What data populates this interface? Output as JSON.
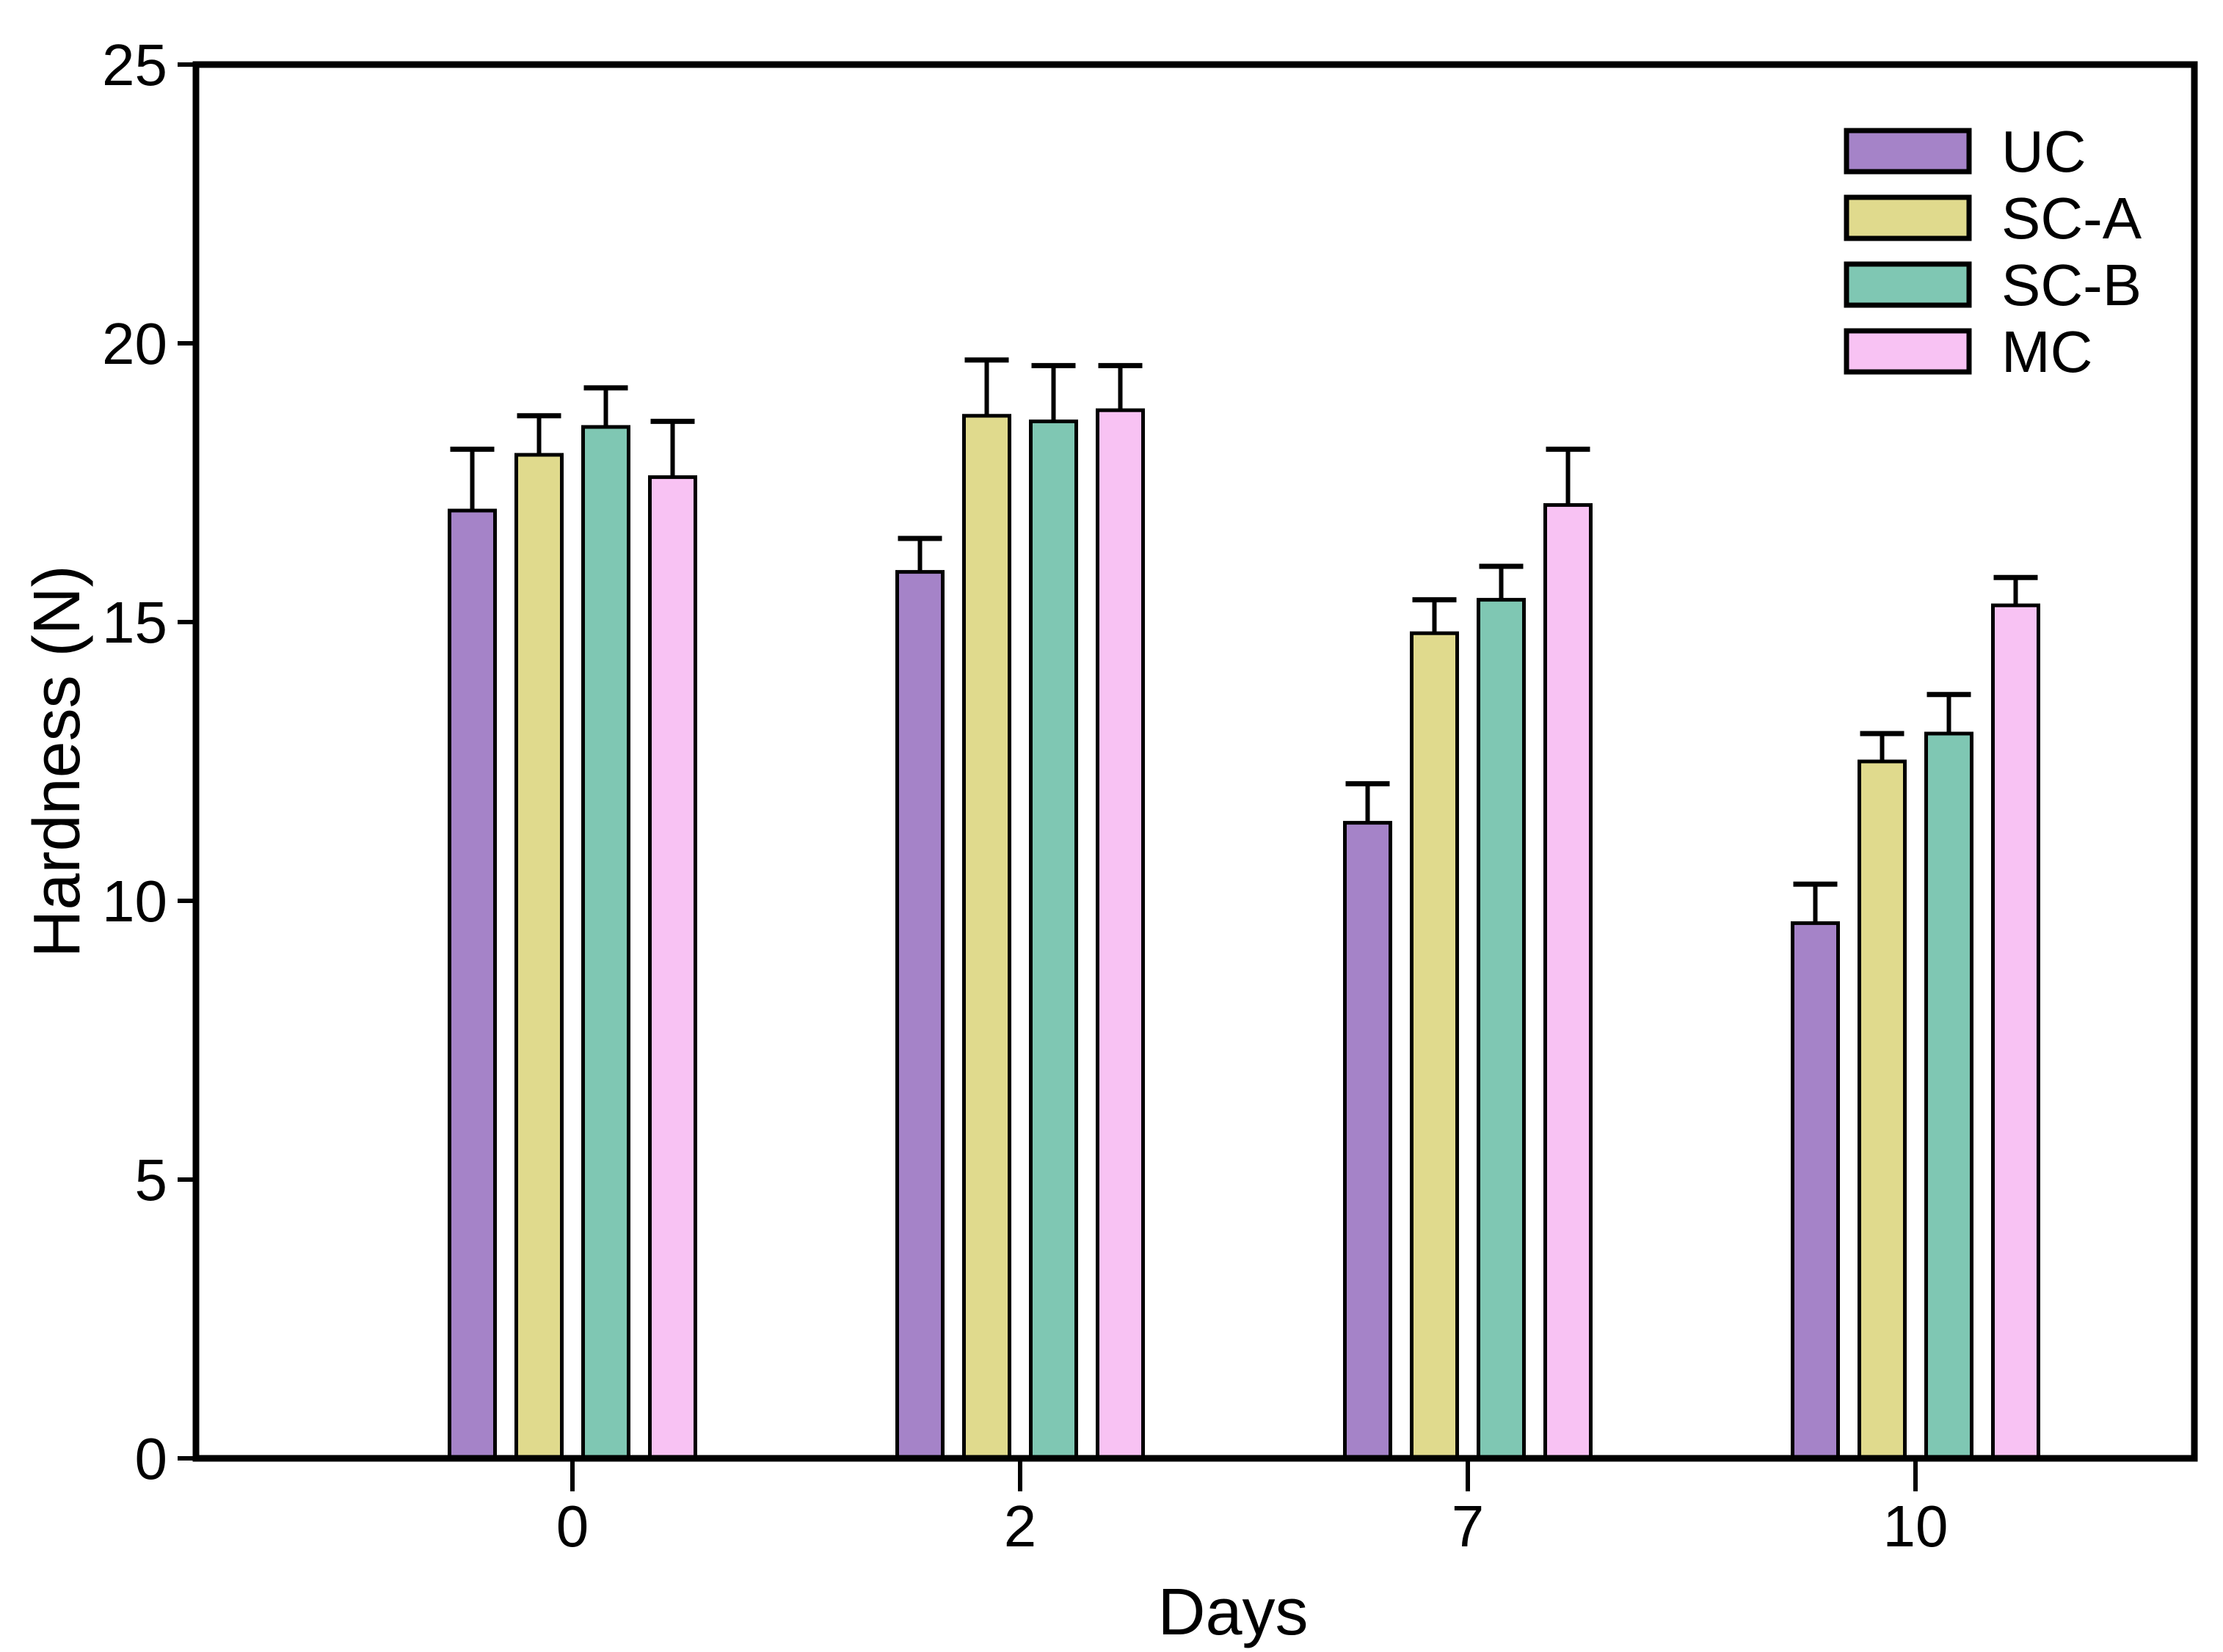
{
  "chart_data": {
    "type": "bar",
    "title": "",
    "xlabel": "Days",
    "ylabel": "Hardness (N)",
    "categories": [
      "0",
      "2",
      "7",
      "10"
    ],
    "series": [
      {
        "name": "UC",
        "color": "#A583C8",
        "values": [
          17.0,
          15.9,
          11.4,
          9.6
        ],
        "errors": [
          1.1,
          0.6,
          0.7,
          0.7
        ]
      },
      {
        "name": "SC-A",
        "color": "#E0DA8D",
        "values": [
          18.0,
          18.7,
          14.8,
          12.5
        ],
        "errors": [
          0.7,
          1.0,
          0.6,
          0.5
        ]
      },
      {
        "name": "SC-B",
        "color": "#7FC7B3",
        "values": [
          18.5,
          18.6,
          15.4,
          13.0
        ],
        "errors": [
          0.7,
          1.0,
          0.6,
          0.7
        ]
      },
      {
        "name": "MC",
        "color": "#F8C2F3",
        "values": [
          17.6,
          18.8,
          17.1,
          15.3
        ],
        "errors": [
          1.0,
          0.8,
          1.0,
          0.5
        ]
      }
    ],
    "ylim": [
      0,
      25
    ],
    "yticks": [
      0,
      5,
      10,
      15,
      20,
      25
    ],
    "grid": false,
    "legend_position": "top-right",
    "axis_color": "#000000",
    "bar_edge_color": "#000000",
    "error_bar_color": "#000000",
    "background_color": "#FFFFFF"
  }
}
